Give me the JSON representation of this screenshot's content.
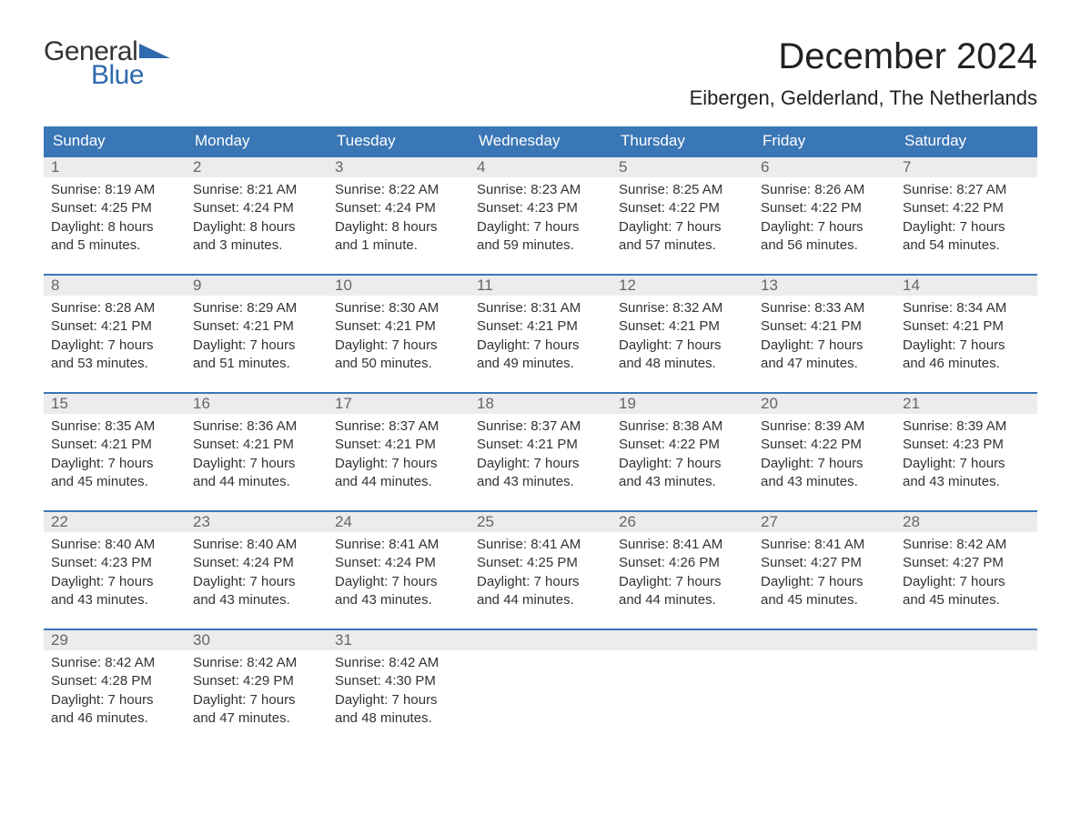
{
  "logo": {
    "word1": "General",
    "word2": "Blue",
    "word1_color": "#333333",
    "word2_color": "#2f6aae",
    "tri_color": "#2f6aae"
  },
  "title": "December 2024",
  "location": "Eibergen, Gelderland, The Netherlands",
  "colors": {
    "header_bg": "#3a77b6",
    "header_text": "#ffffff",
    "daynum_bg": "#ececec",
    "daynum_text": "#666666",
    "border_top": "#3a77b6",
    "body_text": "#333333",
    "page_bg": "#ffffff"
  },
  "typography": {
    "title_fontsize": 40,
    "location_fontsize": 22,
    "weekday_fontsize": 17,
    "daynum_fontsize": 17,
    "cell_fontsize": 15,
    "font_family": "Arial, Helvetica, sans-serif"
  },
  "weekdays": [
    "Sunday",
    "Monday",
    "Tuesday",
    "Wednesday",
    "Thursday",
    "Friday",
    "Saturday"
  ],
  "weeks": [
    [
      {
        "day": "1",
        "sunrise": "Sunrise: 8:19 AM",
        "sunset": "Sunset: 4:25 PM",
        "daylight": "Daylight: 8 hours and 5 minutes."
      },
      {
        "day": "2",
        "sunrise": "Sunrise: 8:21 AM",
        "sunset": "Sunset: 4:24 PM",
        "daylight": "Daylight: 8 hours and 3 minutes."
      },
      {
        "day": "3",
        "sunrise": "Sunrise: 8:22 AM",
        "sunset": "Sunset: 4:24 PM",
        "daylight": "Daylight: 8 hours and 1 minute."
      },
      {
        "day": "4",
        "sunrise": "Sunrise: 8:23 AM",
        "sunset": "Sunset: 4:23 PM",
        "daylight": "Daylight: 7 hours and 59 minutes."
      },
      {
        "day": "5",
        "sunrise": "Sunrise: 8:25 AM",
        "sunset": "Sunset: 4:22 PM",
        "daylight": "Daylight: 7 hours and 57 minutes."
      },
      {
        "day": "6",
        "sunrise": "Sunrise: 8:26 AM",
        "sunset": "Sunset: 4:22 PM",
        "daylight": "Daylight: 7 hours and 56 minutes."
      },
      {
        "day": "7",
        "sunrise": "Sunrise: 8:27 AM",
        "sunset": "Sunset: 4:22 PM",
        "daylight": "Daylight: 7 hours and 54 minutes."
      }
    ],
    [
      {
        "day": "8",
        "sunrise": "Sunrise: 8:28 AM",
        "sunset": "Sunset: 4:21 PM",
        "daylight": "Daylight: 7 hours and 53 minutes."
      },
      {
        "day": "9",
        "sunrise": "Sunrise: 8:29 AM",
        "sunset": "Sunset: 4:21 PM",
        "daylight": "Daylight: 7 hours and 51 minutes."
      },
      {
        "day": "10",
        "sunrise": "Sunrise: 8:30 AM",
        "sunset": "Sunset: 4:21 PM",
        "daylight": "Daylight: 7 hours and 50 minutes."
      },
      {
        "day": "11",
        "sunrise": "Sunrise: 8:31 AM",
        "sunset": "Sunset: 4:21 PM",
        "daylight": "Daylight: 7 hours and 49 minutes."
      },
      {
        "day": "12",
        "sunrise": "Sunrise: 8:32 AM",
        "sunset": "Sunset: 4:21 PM",
        "daylight": "Daylight: 7 hours and 48 minutes."
      },
      {
        "day": "13",
        "sunrise": "Sunrise: 8:33 AM",
        "sunset": "Sunset: 4:21 PM",
        "daylight": "Daylight: 7 hours and 47 minutes."
      },
      {
        "day": "14",
        "sunrise": "Sunrise: 8:34 AM",
        "sunset": "Sunset: 4:21 PM",
        "daylight": "Daylight: 7 hours and 46 minutes."
      }
    ],
    [
      {
        "day": "15",
        "sunrise": "Sunrise: 8:35 AM",
        "sunset": "Sunset: 4:21 PM",
        "daylight": "Daylight: 7 hours and 45 minutes."
      },
      {
        "day": "16",
        "sunrise": "Sunrise: 8:36 AM",
        "sunset": "Sunset: 4:21 PM",
        "daylight": "Daylight: 7 hours and 44 minutes."
      },
      {
        "day": "17",
        "sunrise": "Sunrise: 8:37 AM",
        "sunset": "Sunset: 4:21 PM",
        "daylight": "Daylight: 7 hours and 44 minutes."
      },
      {
        "day": "18",
        "sunrise": "Sunrise: 8:37 AM",
        "sunset": "Sunset: 4:21 PM",
        "daylight": "Daylight: 7 hours and 43 minutes."
      },
      {
        "day": "19",
        "sunrise": "Sunrise: 8:38 AM",
        "sunset": "Sunset: 4:22 PM",
        "daylight": "Daylight: 7 hours and 43 minutes."
      },
      {
        "day": "20",
        "sunrise": "Sunrise: 8:39 AM",
        "sunset": "Sunset: 4:22 PM",
        "daylight": "Daylight: 7 hours and 43 minutes."
      },
      {
        "day": "21",
        "sunrise": "Sunrise: 8:39 AM",
        "sunset": "Sunset: 4:23 PM",
        "daylight": "Daylight: 7 hours and 43 minutes."
      }
    ],
    [
      {
        "day": "22",
        "sunrise": "Sunrise: 8:40 AM",
        "sunset": "Sunset: 4:23 PM",
        "daylight": "Daylight: 7 hours and 43 minutes."
      },
      {
        "day": "23",
        "sunrise": "Sunrise: 8:40 AM",
        "sunset": "Sunset: 4:24 PM",
        "daylight": "Daylight: 7 hours and 43 minutes."
      },
      {
        "day": "24",
        "sunrise": "Sunrise: 8:41 AM",
        "sunset": "Sunset: 4:24 PM",
        "daylight": "Daylight: 7 hours and 43 minutes."
      },
      {
        "day": "25",
        "sunrise": "Sunrise: 8:41 AM",
        "sunset": "Sunset: 4:25 PM",
        "daylight": "Daylight: 7 hours and 44 minutes."
      },
      {
        "day": "26",
        "sunrise": "Sunrise: 8:41 AM",
        "sunset": "Sunset: 4:26 PM",
        "daylight": "Daylight: 7 hours and 44 minutes."
      },
      {
        "day": "27",
        "sunrise": "Sunrise: 8:41 AM",
        "sunset": "Sunset: 4:27 PM",
        "daylight": "Daylight: 7 hours and 45 minutes."
      },
      {
        "day": "28",
        "sunrise": "Sunrise: 8:42 AM",
        "sunset": "Sunset: 4:27 PM",
        "daylight": "Daylight: 7 hours and 45 minutes."
      }
    ],
    [
      {
        "day": "29",
        "sunrise": "Sunrise: 8:42 AM",
        "sunset": "Sunset: 4:28 PM",
        "daylight": "Daylight: 7 hours and 46 minutes."
      },
      {
        "day": "30",
        "sunrise": "Sunrise: 8:42 AM",
        "sunset": "Sunset: 4:29 PM",
        "daylight": "Daylight: 7 hours and 47 minutes."
      },
      {
        "day": "31",
        "sunrise": "Sunrise: 8:42 AM",
        "sunset": "Sunset: 4:30 PM",
        "daylight": "Daylight: 7 hours and 48 minutes."
      },
      {
        "day": "",
        "sunrise": "",
        "sunset": "",
        "daylight": ""
      },
      {
        "day": "",
        "sunrise": "",
        "sunset": "",
        "daylight": ""
      },
      {
        "day": "",
        "sunrise": "",
        "sunset": "",
        "daylight": ""
      },
      {
        "day": "",
        "sunrise": "",
        "sunset": "",
        "daylight": ""
      }
    ]
  ]
}
